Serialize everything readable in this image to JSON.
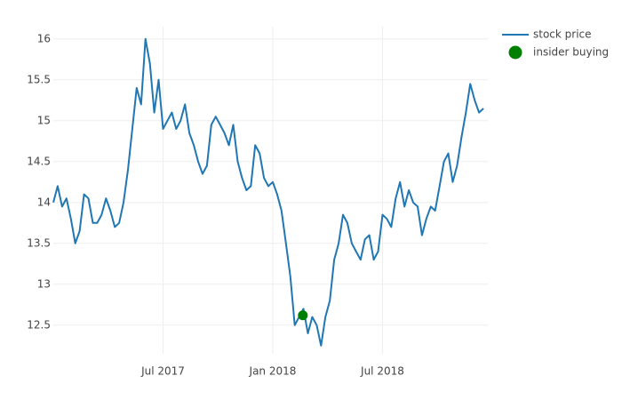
{
  "chart_data": {
    "type": "line",
    "xlim": [
      2017.0,
      2018.98
    ],
    "ylim": [
      12.15,
      16.15
    ],
    "xticks": [
      {
        "value": 2017.5,
        "label": "Jul 2017"
      },
      {
        "value": 2018.0,
        "label": "Jan 2018"
      },
      {
        "value": 2018.5,
        "label": "Jul 2018"
      }
    ],
    "yticks": [
      12.5,
      13,
      13.5,
      14,
      14.5,
      15,
      15.5,
      16
    ],
    "grid": true,
    "legend": "top-right",
    "series": [
      {
        "name": "stock price",
        "color": "#1f77b4",
        "x": [
          2017.0,
          2017.02,
          2017.04,
          2017.06,
          2017.08,
          2017.1,
          2017.12,
          2017.14,
          2017.16,
          2017.18,
          2017.2,
          2017.22,
          2017.24,
          2017.26,
          2017.28,
          2017.3,
          2017.32,
          2017.34,
          2017.36,
          2017.38,
          2017.4,
          2017.42,
          2017.44,
          2017.46,
          2017.48,
          2017.5,
          2017.52,
          2017.54,
          2017.56,
          2017.58,
          2017.6,
          2017.62,
          2017.64,
          2017.66,
          2017.68,
          2017.7,
          2017.72,
          2017.74,
          2017.76,
          2017.78,
          2017.8,
          2017.82,
          2017.84,
          2017.86,
          2017.88,
          2017.9,
          2017.92,
          2017.94,
          2017.96,
          2017.98,
          2018.0,
          2018.02,
          2018.04,
          2018.06,
          2018.08,
          2018.1,
          2018.12,
          2018.14,
          2018.16,
          2018.18,
          2018.2,
          2018.22,
          2018.24,
          2018.26,
          2018.28,
          2018.3,
          2018.32,
          2018.34,
          2018.36,
          2018.38,
          2018.4,
          2018.42,
          2018.44,
          2018.46,
          2018.48,
          2018.5,
          2018.52,
          2018.54,
          2018.56,
          2018.58,
          2018.6,
          2018.62,
          2018.64,
          2018.66,
          2018.68,
          2018.7,
          2018.72,
          2018.74,
          2018.76,
          2018.78,
          2018.8,
          2018.82,
          2018.84,
          2018.86,
          2018.88,
          2018.9,
          2018.92,
          2018.94,
          2018.96
        ],
        "values": [
          14.0,
          14.2,
          13.95,
          14.05,
          13.8,
          13.5,
          13.65,
          14.1,
          14.05,
          13.75,
          13.75,
          13.85,
          14.05,
          13.9,
          13.7,
          13.75,
          14.0,
          14.4,
          14.9,
          15.4,
          15.2,
          16.0,
          15.7,
          15.1,
          15.5,
          14.9,
          15.0,
          15.1,
          14.9,
          15.0,
          15.2,
          14.85,
          14.7,
          14.5,
          14.35,
          14.45,
          14.95,
          15.05,
          14.95,
          14.85,
          14.7,
          14.95,
          14.5,
          14.3,
          14.15,
          14.2,
          14.7,
          14.6,
          14.3,
          14.2,
          14.25,
          14.1,
          13.9,
          13.5,
          13.1,
          12.5,
          12.6,
          12.7,
          12.4,
          12.6,
          12.5,
          12.25,
          12.6,
          12.8,
          13.3,
          13.5,
          13.85,
          13.75,
          13.5,
          13.4,
          13.3,
          13.55,
          13.6,
          13.3,
          13.4,
          13.85,
          13.8,
          13.7,
          14.05,
          14.25,
          13.95,
          14.15,
          14.0,
          13.95,
          13.6,
          13.8,
          13.95,
          13.9,
          14.2,
          14.5,
          14.6,
          14.25,
          14.45,
          14.8,
          15.1,
          15.45,
          15.25,
          15.1,
          15.15
        ]
      },
      {
        "name": "insider buying",
        "color": "#008000",
        "type": "scatter",
        "x": [
          2018.137
        ],
        "values": [
          12.62
        ]
      }
    ]
  }
}
